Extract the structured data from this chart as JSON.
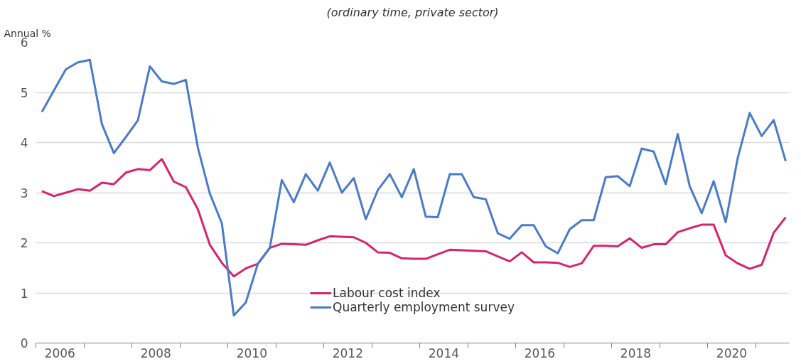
{
  "chart_data": {
    "type": "line",
    "subtitle": "(ordinary time, private sector)",
    "ylabel": "Annual %",
    "x": [
      2006.125,
      2006.375,
      2006.625,
      2006.875,
      2007.125,
      2007.375,
      2007.625,
      2007.875,
      2008.125,
      2008.375,
      2008.625,
      2008.875,
      2009.125,
      2009.375,
      2009.625,
      2009.875,
      2010.125,
      2010.375,
      2010.625,
      2010.875,
      2011.125,
      2011.375,
      2011.625,
      2011.875,
      2012.125,
      2012.375,
      2012.625,
      2012.875,
      2013.125,
      2013.375,
      2013.625,
      2013.875,
      2014.125,
      2014.375,
      2014.625,
      2014.875,
      2015.125,
      2015.375,
      2015.625,
      2015.875,
      2016.125,
      2016.375,
      2016.625,
      2016.875,
      2017.125,
      2017.375,
      2017.625,
      2017.875,
      2018.125,
      2018.375,
      2018.625,
      2018.875,
      2019.125,
      2019.375,
      2019.625,
      2019.875,
      2020.125,
      2020.375,
      2020.625,
      2020.875,
      2021.125,
      2021.375,
      2021.625
    ],
    "series": [
      {
        "name": "Labour cost index",
        "color": "#d6246e",
        "values": [
          3.03,
          2.93,
          3.0,
          3.07,
          3.04,
          3.2,
          3.17,
          3.4,
          3.47,
          3.45,
          3.67,
          3.22,
          3.11,
          2.67,
          1.96,
          1.6,
          1.33,
          1.49,
          1.58,
          1.9,
          1.98,
          1.97,
          1.96,
          2.05,
          2.13,
          2.12,
          2.11,
          2.0,
          1.81,
          1.8,
          1.69,
          1.68,
          1.68,
          1.77,
          1.86,
          1.85,
          1.84,
          1.83,
          1.73,
          1.63,
          1.81,
          1.61,
          1.61,
          1.6,
          1.52,
          1.59,
          1.94,
          1.94,
          1.93,
          2.09,
          1.9,
          1.97,
          1.97,
          2.21,
          2.29,
          2.36,
          2.36,
          1.75,
          1.59,
          1.48,
          1.56,
          2.2,
          2.51
        ]
      },
      {
        "name": "Quarterly employment survey",
        "color": "#4a7bc8",
        "values": [
          4.61,
          5.04,
          5.46,
          5.6,
          5.65,
          4.37,
          3.79,
          4.11,
          4.44,
          5.52,
          5.22,
          5.17,
          5.25,
          3.9,
          2.98,
          2.39,
          0.55,
          0.81,
          1.58,
          1.9,
          3.25,
          2.81,
          3.37,
          3.04,
          3.6,
          3.0,
          3.29,
          2.47,
          3.05,
          3.37,
          2.91,
          3.47,
          2.52,
          2.51,
          3.37,
          3.37,
          2.91,
          2.87,
          2.19,
          2.08,
          2.35,
          2.35,
          1.93,
          1.79,
          2.27,
          2.45,
          2.45,
          3.31,
          3.33,
          3.13,
          3.88,
          3.82,
          3.17,
          4.17,
          3.13,
          2.59,
          3.23,
          2.41,
          3.69,
          4.59,
          4.13,
          4.45,
          3.63
        ]
      }
    ],
    "xlim": [
      2006,
      2021.7
    ],
    "xticks": [
      {
        "value": 2006,
        "label": null
      },
      {
        "value": 2007,
        "label": null
      },
      {
        "value": 2008,
        "label": null
      },
      {
        "value": 2009,
        "label": null
      },
      {
        "value": 2010,
        "label": null
      },
      {
        "value": 2011,
        "label": null
      },
      {
        "value": 2012,
        "label": null
      },
      {
        "value": 2013,
        "label": null
      },
      {
        "value": 2014,
        "label": null
      },
      {
        "value": 2015,
        "label": null
      },
      {
        "value": 2016,
        "label": null
      },
      {
        "value": 2017,
        "label": null
      },
      {
        "value": 2018,
        "label": null
      },
      {
        "value": 2019,
        "label": null
      },
      {
        "value": 2020,
        "label": null
      },
      {
        "value": 2021,
        "label": null
      },
      {
        "value": 2006.5,
        "label": "2006"
      },
      {
        "value": 2008.5,
        "label": "2008"
      },
      {
        "value": 2010.5,
        "label": "2010"
      },
      {
        "value": 2012.5,
        "label": "2012"
      },
      {
        "value": 2014.5,
        "label": "2014"
      },
      {
        "value": 2016.5,
        "label": "2016"
      },
      {
        "value": 2018.5,
        "label": "2018"
      },
      {
        "value": 2020.5,
        "label": "2020"
      }
    ],
    "ylim": [
      0,
      6
    ],
    "yticks": [
      0,
      1,
      2,
      3,
      4,
      5,
      6
    ],
    "grid": "y",
    "legend": "bottom",
    "marker": "none",
    "line_style": "solid"
  }
}
